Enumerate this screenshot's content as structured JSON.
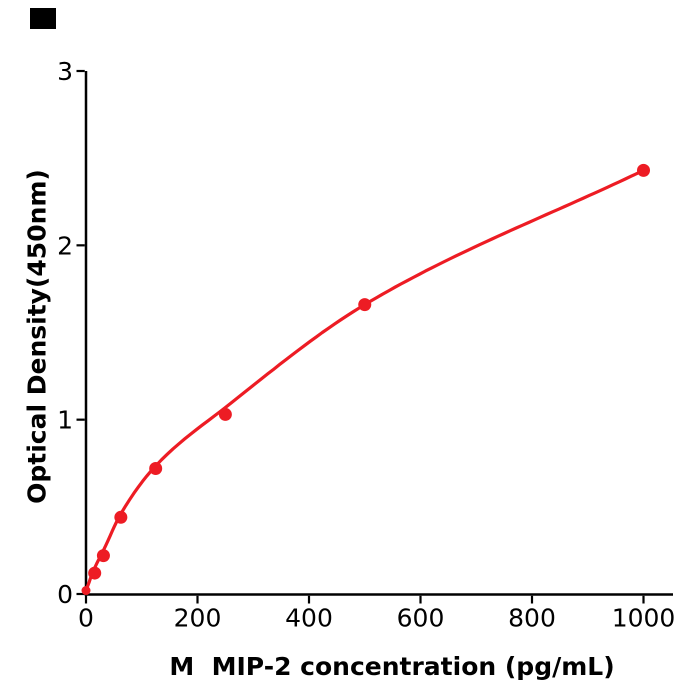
{
  "figure": {
    "background": "#ffffff",
    "corner_mark_color": "#000000"
  },
  "chart_data": {
    "type": "scatter",
    "title": "",
    "xlabel": "M  MIP-2 concentration (pg/mL)",
    "ylabel": "Optical Density(450nm)",
    "x_ticks": [
      0,
      200,
      400,
      600,
      800,
      1000
    ],
    "y_ticks": [
      0,
      1,
      2,
      3
    ],
    "xlim": [
      0,
      1050
    ],
    "ylim": [
      0,
      3
    ],
    "grid": false,
    "legend": "none",
    "line_color": "#ed1c24",
    "axis_color": "#000000",
    "points": [
      {
        "x": 15.6,
        "od": 0.12
      },
      {
        "x": 31.25,
        "od": 0.22
      },
      {
        "x": 62.5,
        "od": 0.44
      },
      {
        "x": 125,
        "od": 0.72
      },
      {
        "x": 250,
        "od": 1.03
      },
      {
        "x": 500,
        "od": 1.66
      },
      {
        "x": 1000,
        "od": 2.43
      }
    ],
    "origin_dot": {
      "x": 0,
      "od": 0.02
    },
    "curve_fit": [
      [
        0,
        0.02
      ],
      [
        15.6,
        0.15
      ],
      [
        31.25,
        0.25
      ],
      [
        62.5,
        0.46
      ],
      [
        125,
        0.735
      ],
      [
        250,
        1.07
      ],
      [
        500,
        1.66
      ],
      [
        1000,
        2.43
      ]
    ]
  }
}
